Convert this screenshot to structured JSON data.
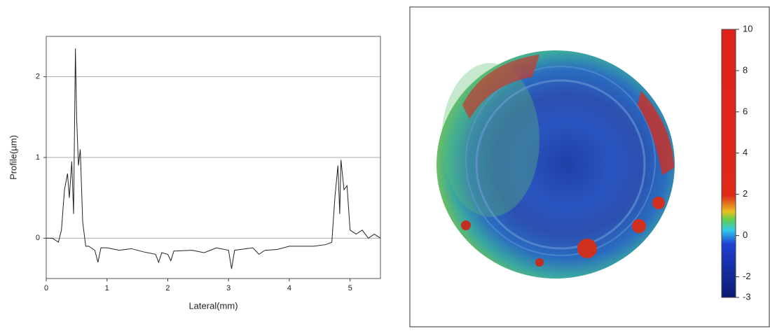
{
  "chart_data": [
    {
      "type": "line",
      "xlabel": "Lateral(mm)",
      "ylabel": "Profile(µm)",
      "x": [
        0,
        0.1,
        0.2,
        0.25,
        0.3,
        0.35,
        0.38,
        0.42,
        0.45,
        0.48,
        0.5,
        0.53,
        0.56,
        0.6,
        0.65,
        0.7,
        0.8,
        0.85,
        0.9,
        1.0,
        1.2,
        1.4,
        1.6,
        1.8,
        1.85,
        1.9,
        2.0,
        2.05,
        2.1,
        2.4,
        2.6,
        2.8,
        3.0,
        3.05,
        3.1,
        3.4,
        3.5,
        3.6,
        3.8,
        4.0,
        4.2,
        4.4,
        4.6,
        4.7,
        4.75,
        4.8,
        4.83,
        4.85,
        4.9,
        4.95,
        5.0,
        5.1,
        5.2,
        5.3,
        5.4,
        5.5
      ],
      "series": [
        {
          "color": "#222222",
          "values": [
            0,
            0.0,
            -0.05,
            0.1,
            0.6,
            0.8,
            0.5,
            0.95,
            0.3,
            2.35,
            1.5,
            0.9,
            1.1,
            0.2,
            -0.1,
            -0.1,
            -0.15,
            -0.3,
            -0.12,
            -0.12,
            -0.15,
            -0.13,
            -0.17,
            -0.2,
            -0.3,
            -0.18,
            -0.2,
            -0.28,
            -0.16,
            -0.15,
            -0.18,
            -0.12,
            -0.15,
            -0.38,
            -0.15,
            -0.12,
            -0.2,
            -0.15,
            -0.14,
            -0.1,
            -0.1,
            -0.1,
            -0.08,
            -0.05,
            0.5,
            0.9,
            0.3,
            0.97,
            0.6,
            0.65,
            0.1,
            0.05,
            0.1,
            0.0,
            0.05,
            0.0
          ]
        }
      ],
      "xlim": [
        0,
        5.5
      ],
      "xticks": [
        0,
        1,
        2,
        3,
        4,
        5
      ],
      "ylim": [
        -0.5,
        2.5
      ],
      "yticks": [
        0,
        1,
        2
      ],
      "grid": true
    },
    {
      "type": "heatmap",
      "colorbar_lim": [
        -3,
        10
      ],
      "colorbar_ticks": [
        10,
        8,
        6,
        4,
        2,
        0,
        -2,
        -3
      ]
    }
  ]
}
